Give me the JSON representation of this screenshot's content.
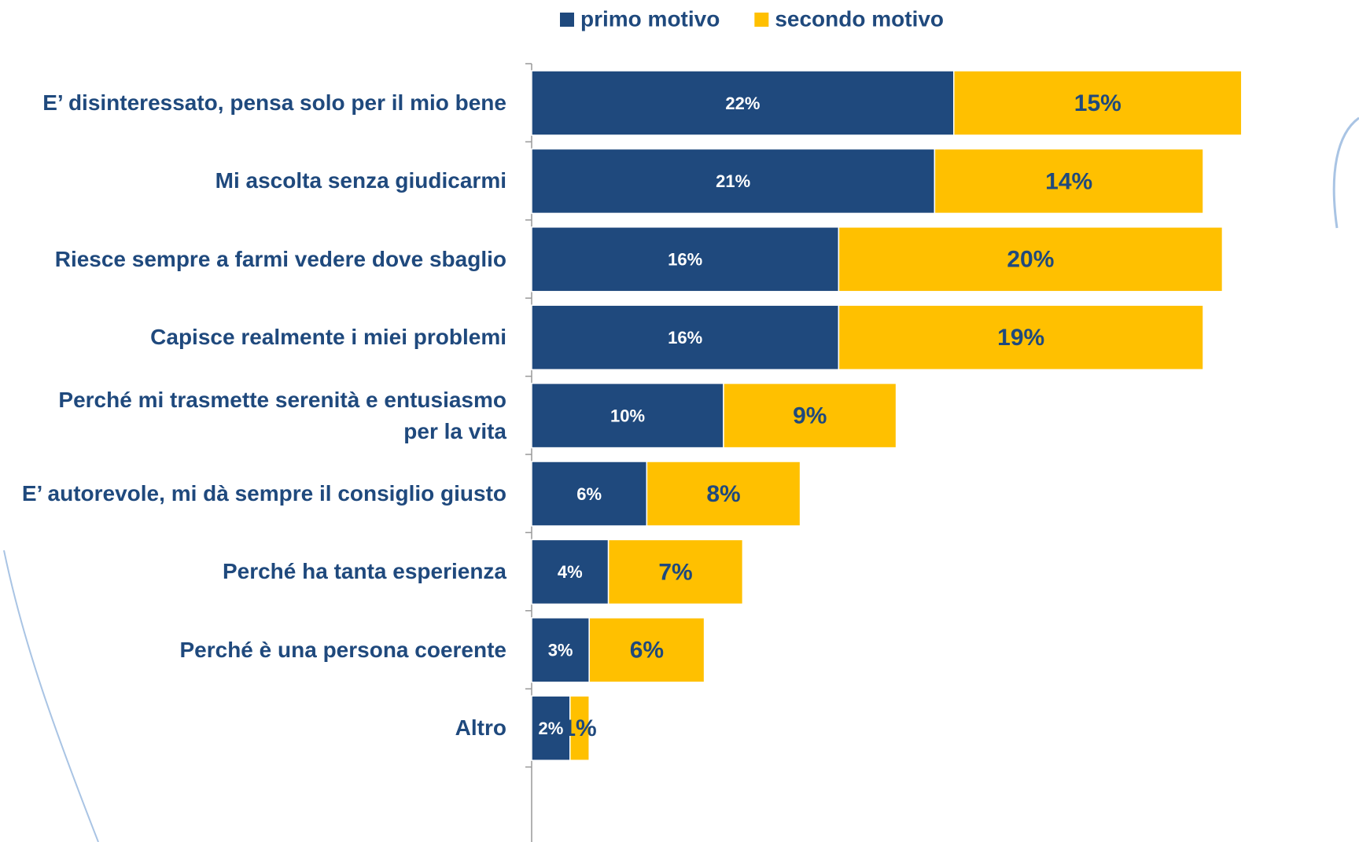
{
  "chart_data": {
    "type": "stacked-bar-horizontal",
    "categories": [
      "E’ disinteressato, pensa solo per il mio bene",
      "Mi ascolta senza giudicarmi",
      "Riesce sempre a farmi vedere dove sbaglio",
      "Capisce realmente i miei problemi",
      "Perché mi trasmette serenità e entusiasmo\nper la vita",
      "E’ autorevole, mi dà sempre il consiglio giusto",
      "Perché ha tanta esperienza",
      "Perché è una persona coerente",
      "Altro"
    ],
    "series": [
      {
        "name": "primo motivo",
        "color": "#1f497d",
        "values": [
          22,
          21,
          16,
          16,
          10,
          6,
          4,
          3,
          2
        ],
        "value_labels": [
          "22%",
          "21%",
          "16%",
          "16%",
          "10%",
          "6%",
          "4%",
          "3%",
          "2%"
        ]
      },
      {
        "name": "secondo motivo",
        "color": "#ffc000",
        "values": [
          15,
          14,
          20,
          19,
          9,
          8,
          7,
          6,
          1
        ],
        "value_labels": [
          "15%",
          "14%",
          "20%",
          "19%",
          "9%",
          "8%",
          "7%",
          "6%",
          "1%"
        ]
      }
    ],
    "legend": "top"
  }
}
